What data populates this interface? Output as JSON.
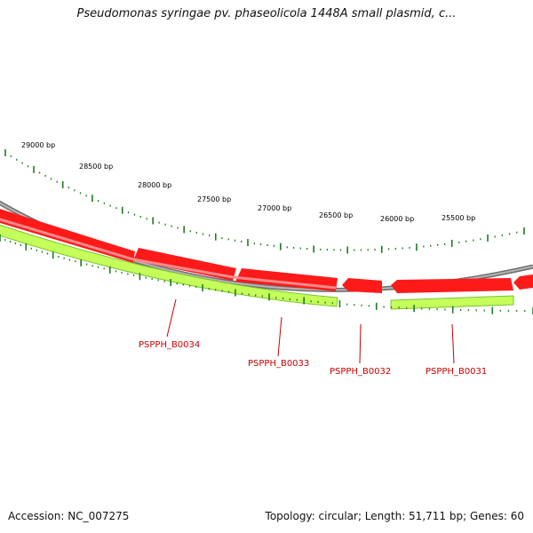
{
  "title": "Pseudomonas syringae pv. phaseolicola 1448A small plasmid, c...",
  "footer": {
    "accession": "Accession: NC_007275",
    "summary": "Topology: circular; Length: 51,711 bp; Genes: 60"
  },
  "colors": {
    "backbone": "#8a8a8a",
    "gene_forward": "#ff1a1a",
    "gene_forward_shadow": "#ff7777",
    "cds": "#b8ff4a",
    "cds_outline": "#78c22a",
    "ticks": "#1f7a1f",
    "label": "#c80000"
  },
  "ticks": {
    "labels": [
      "29000 bp",
      "28500 bp",
      "28000 bp",
      "27500 bp",
      "27000 bp",
      "26500 bp",
      "26000 bp",
      "25500 bp"
    ]
  },
  "genes": [
    {
      "id": "PSPPH_B0034"
    },
    {
      "id": "PSPPH_B0033"
    },
    {
      "id": "PSPPH_B0032"
    },
    {
      "id": "PSPPH_B0031"
    }
  ]
}
